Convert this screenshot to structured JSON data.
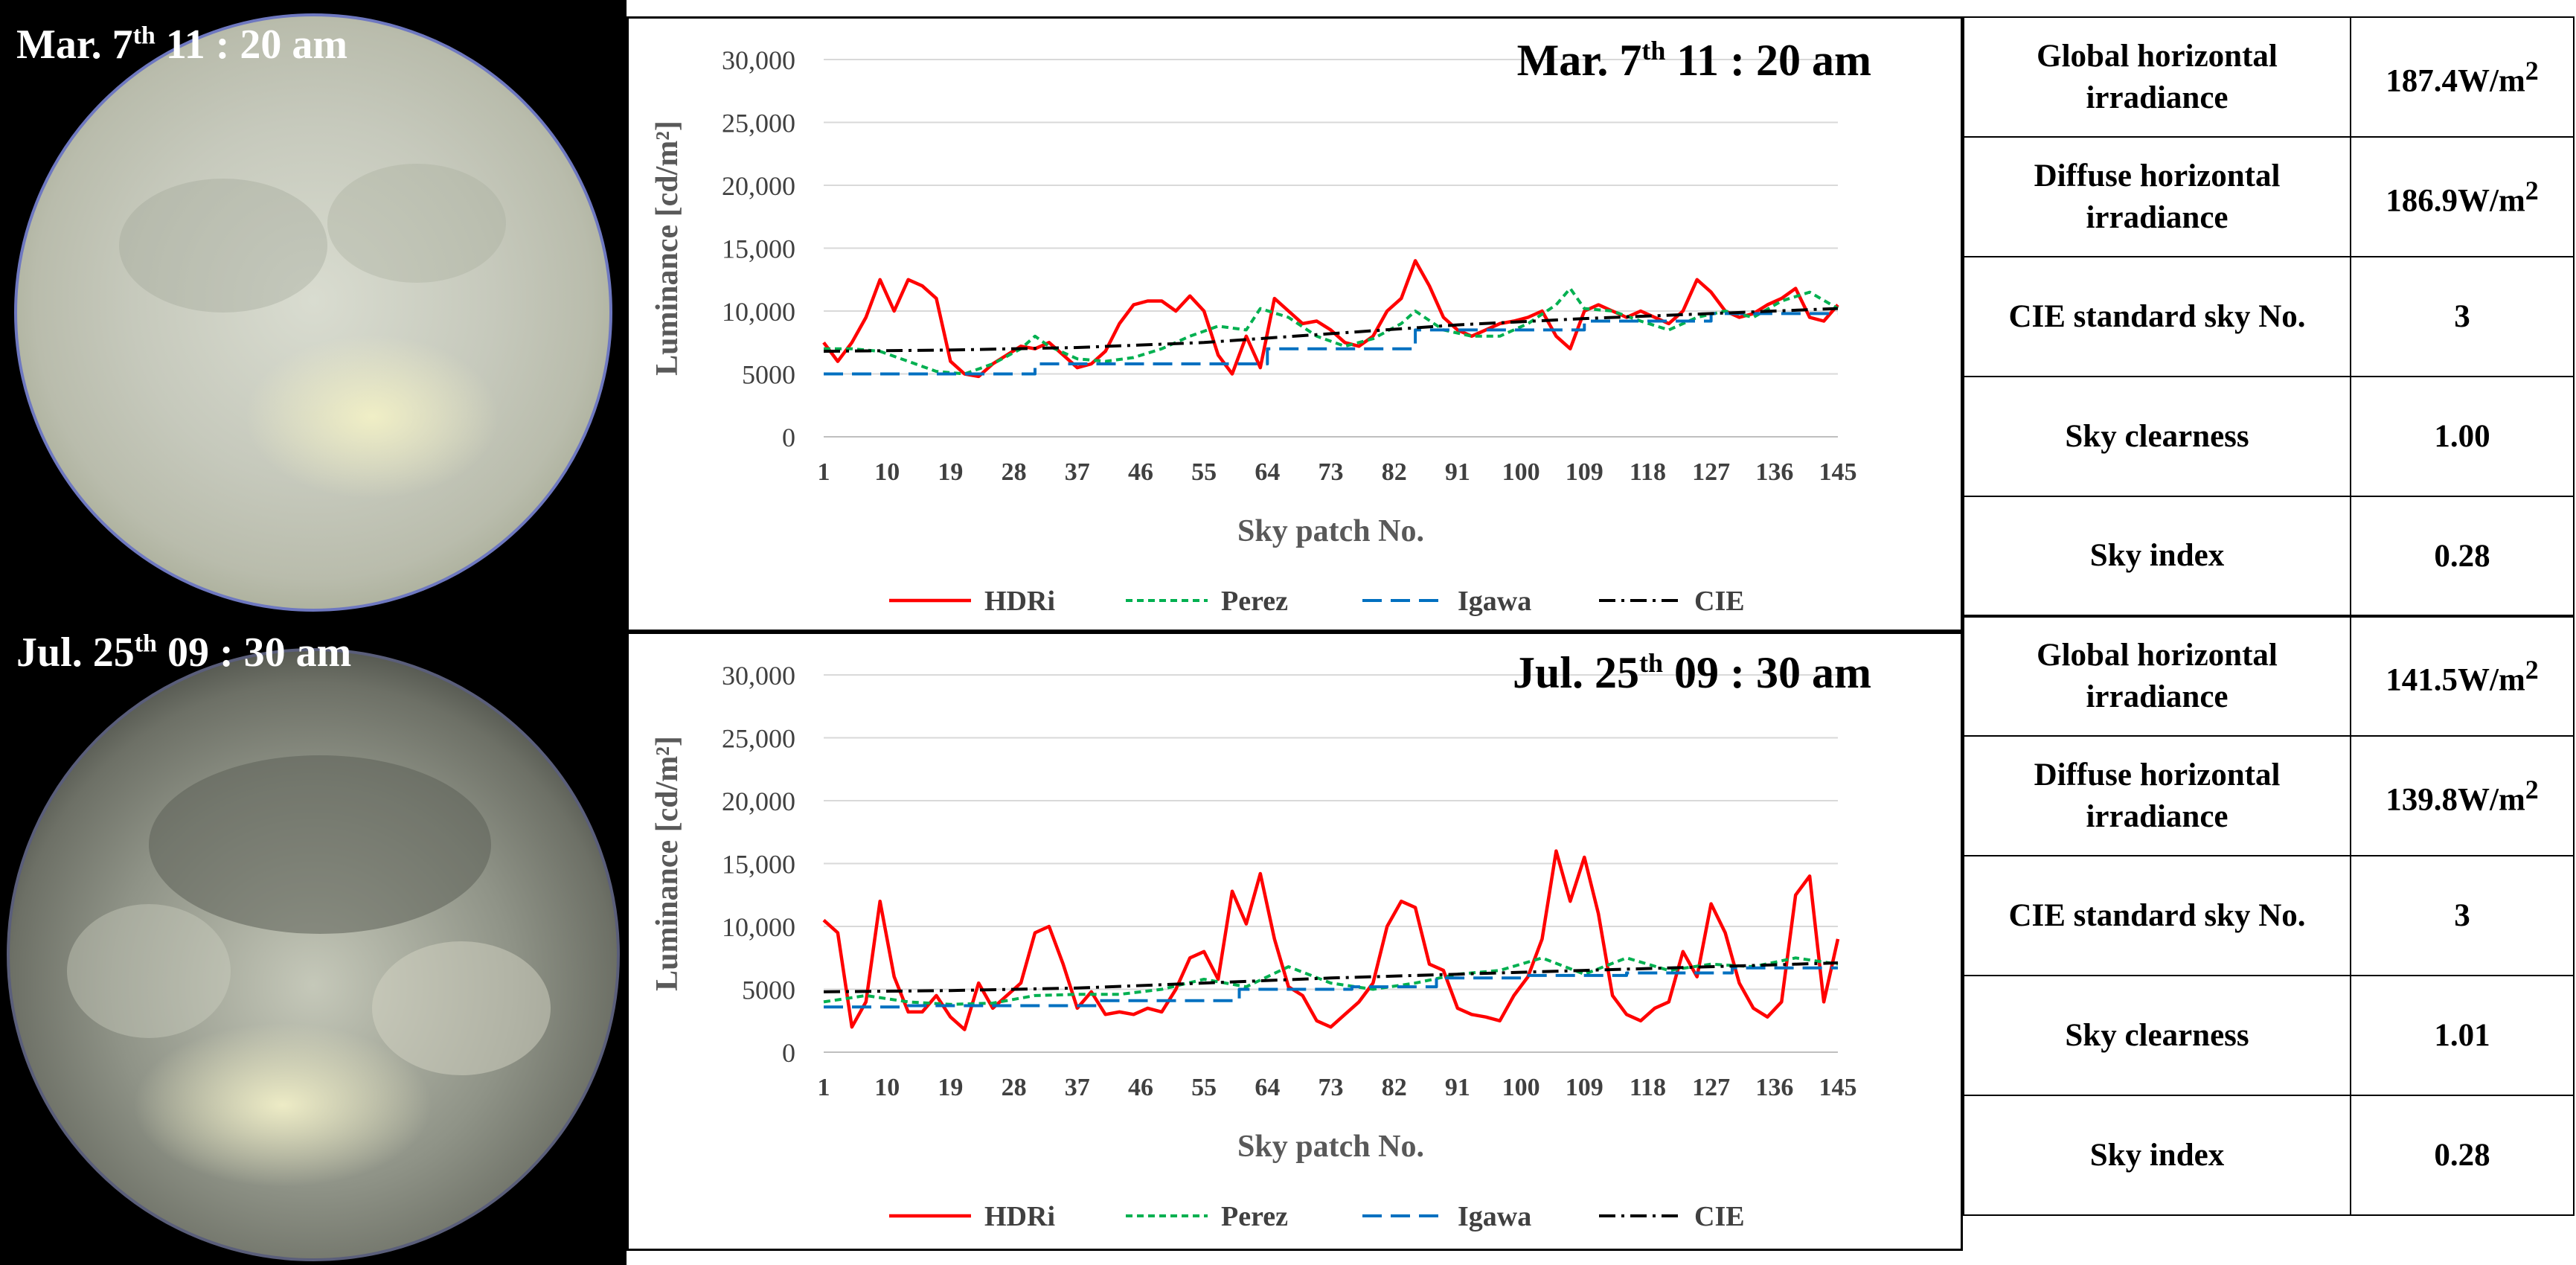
{
  "panels": [
    {
      "photo_label": {
        "month": "Mar. 7",
        "ordinal": "th",
        "time": " 11 : 20 am"
      },
      "chart_title": {
        "month": "Mar. 7",
        "ordinal": "th",
        "time": " 11 : 20 am"
      },
      "table": {
        "rows": [
          {
            "label": "Global horizontal irradiance",
            "value": "187.4W/m",
            "unit_exp": "2"
          },
          {
            "label": "Diffuse horizontal irradiance",
            "value": "186.9W/m",
            "unit_exp": "2"
          },
          {
            "label": "CIE standard sky No.",
            "value": "3",
            "unit_exp": ""
          },
          {
            "label": "Sky clearness",
            "value": "1.00",
            "unit_exp": ""
          },
          {
            "label": "Sky index",
            "value": "0.28",
            "unit_exp": ""
          }
        ]
      }
    },
    {
      "photo_label": {
        "month": "Jul. 25",
        "ordinal": "th",
        "time": " 09 : 30 am"
      },
      "chart_title": {
        "month": "Jul. 25",
        "ordinal": "th",
        "time": " 09 : 30 am"
      },
      "table": {
        "rows": [
          {
            "label": "Global horizontal irradiance",
            "value": "141.5W/m",
            "unit_exp": "2"
          },
          {
            "label": "Diffuse horizontal irradiance",
            "value": "139.8W/m",
            "unit_exp": "2"
          },
          {
            "label": "CIE standard sky No.",
            "value": "3",
            "unit_exp": ""
          },
          {
            "label": "Sky clearness",
            "value": "1.01",
            "unit_exp": ""
          },
          {
            "label": "Sky index",
            "value": "0.28",
            "unit_exp": ""
          }
        ]
      }
    }
  ],
  "chart_data": [
    {
      "type": "line",
      "title": "Mar. 7th 11 : 20 am",
      "xlabel": "Sky patch No.",
      "ylabel": "Luminance [cd/m²]",
      "ylim": [
        0,
        30000
      ],
      "xlim": [
        1,
        145
      ],
      "yticks": [
        "0",
        "5000",
        "10,000",
        "15,000",
        "20,000",
        "25,000",
        "30,000"
      ],
      "xticks": [
        "1",
        "10",
        "19",
        "28",
        "37",
        "46",
        "55",
        "64",
        "73",
        "82",
        "91",
        "100",
        "109",
        "118",
        "127",
        "136",
        "145"
      ],
      "grid": true,
      "legend_position": "bottom",
      "series": [
        {
          "name": "HDRi",
          "color": "#ff0000",
          "style": "solid",
          "x": [
            1,
            3,
            5,
            7,
            9,
            11,
            13,
            15,
            17,
            19,
            21,
            23,
            25,
            27,
            29,
            31,
            33,
            35,
            37,
            39,
            41,
            43,
            45,
            47,
            49,
            51,
            53,
            55,
            57,
            59,
            61,
            63,
            65,
            67,
            69,
            71,
            73,
            75,
            77,
            79,
            81,
            83,
            85,
            87,
            89,
            91,
            93,
            95,
            97,
            99,
            101,
            103,
            105,
            107,
            109,
            111,
            113,
            115,
            117,
            119,
            121,
            123,
            125,
            127,
            129,
            131,
            133,
            135,
            137,
            139,
            141,
            143,
            145
          ],
          "values": [
            7500,
            6000,
            7500,
            9500,
            12500,
            10000,
            12500,
            12000,
            11000,
            6000,
            5000,
            4800,
            5800,
            6500,
            7200,
            7000,
            7500,
            6500,
            5500,
            5800,
            6800,
            9000,
            10500,
            10800,
            10800,
            10000,
            11200,
            10000,
            6500,
            5000,
            8000,
            5500,
            11000,
            10000,
            9000,
            9200,
            8500,
            7500,
            7200,
            8000,
            10000,
            11000,
            14000,
            12000,
            9500,
            8500,
            8000,
            8500,
            9000,
            9200,
            9500,
            10000,
            8000,
            7000,
            10000,
            10500,
            10000,
            9500,
            10000,
            9500,
            9000,
            10000,
            12500,
            11500,
            10000,
            9500,
            9800,
            10500,
            11000,
            11800,
            9500,
            9200,
            10500
          ]
        },
        {
          "name": "Perez",
          "color": "#00b050",
          "style": "dashed",
          "x": [
            1,
            5,
            9,
            13,
            17,
            21,
            25,
            29,
            31,
            33,
            37,
            41,
            45,
            49,
            53,
            57,
            61,
            63,
            67,
            71,
            75,
            79,
            83,
            85,
            89,
            93,
            97,
            101,
            105,
            107,
            109,
            113,
            117,
            121,
            125,
            129,
            133,
            137,
            141,
            145
          ],
          "values": [
            7000,
            7000,
            6800,
            6000,
            5200,
            5000,
            5800,
            7000,
            8000,
            7200,
            6200,
            6000,
            6300,
            7000,
            8000,
            8800,
            8500,
            10200,
            9500,
            8000,
            7200,
            7800,
            9000,
            10000,
            8500,
            8000,
            8000,
            9000,
            10500,
            11800,
            10200,
            10000,
            9200,
            8500,
            9500,
            10000,
            9500,
            10800,
            11500,
            10200
          ]
        },
        {
          "name": "Igawa",
          "color": "#0070c0",
          "style": "longdash",
          "x": [
            1,
            4,
            4,
            19,
            19,
            31,
            31,
            64,
            64,
            85,
            85,
            109,
            109,
            127,
            127,
            145
          ],
          "values": [
            5000,
            5000,
            5000,
            5000,
            5000,
            5000,
            5800,
            5800,
            7000,
            7000,
            8500,
            8500,
            9200,
            9200,
            9800,
            9800
          ]
        },
        {
          "name": "CIE",
          "color": "#000000",
          "style": "dashdot",
          "x": [
            1,
            19,
            37,
            55,
            73,
            91,
            109,
            127,
            145
          ],
          "values": [
            6800,
            6900,
            7100,
            7500,
            8200,
            8900,
            9400,
            9800,
            10200
          ]
        }
      ]
    },
    {
      "type": "line",
      "title": "Jul. 25th 09 : 30 am",
      "xlabel": "Sky patch No.",
      "ylabel": "Luminance [cd/m²]",
      "ylim": [
        0,
        30000
      ],
      "xlim": [
        1,
        145
      ],
      "yticks": [
        "0",
        "5000",
        "10,000",
        "15,000",
        "20,000",
        "25,000",
        "30,000"
      ],
      "xticks": [
        "1",
        "10",
        "19",
        "28",
        "37",
        "46",
        "55",
        "64",
        "73",
        "82",
        "91",
        "100",
        "109",
        "118",
        "127",
        "136",
        "145"
      ],
      "grid": true,
      "legend_position": "bottom",
      "series": [
        {
          "name": "HDRi",
          "color": "#ff0000",
          "style": "solid",
          "x": [
            1,
            3,
            5,
            7,
            9,
            11,
            13,
            15,
            17,
            19,
            21,
            23,
            25,
            27,
            29,
            31,
            33,
            35,
            37,
            39,
            41,
            43,
            45,
            47,
            49,
            51,
            53,
            55,
            57,
            59,
            61,
            63,
            65,
            67,
            69,
            71,
            73,
            75,
            77,
            79,
            81,
            83,
            85,
            87,
            89,
            91,
            93,
            95,
            97,
            99,
            101,
            103,
            105,
            107,
            109,
            111,
            113,
            115,
            117,
            119,
            121,
            123,
            125,
            127,
            129,
            131,
            133,
            135,
            137,
            139,
            141,
            143,
            145
          ],
          "values": [
            10500,
            9500,
            2000,
            4000,
            12000,
            6000,
            3200,
            3200,
            4500,
            2800,
            1800,
            5500,
            3500,
            4500,
            5500,
            9500,
            10000,
            7000,
            3500,
            4800,
            3000,
            3200,
            3000,
            3500,
            3200,
            5000,
            7500,
            8000,
            5800,
            12800,
            10200,
            14200,
            9000,
            5200,
            4500,
            2500,
            2000,
            3000,
            4000,
            5500,
            10000,
            12000,
            11500,
            7000,
            6500,
            3500,
            3000,
            2800,
            2500,
            4500,
            6000,
            9000,
            16000,
            12000,
            15500,
            11000,
            4500,
            3000,
            2500,
            3500,
            4000,
            8000,
            6000,
            11800,
            9500,
            5500,
            3500,
            2800,
            4000,
            12500,
            14000,
            4000,
            9000
          ]
        },
        {
          "name": "Perez",
          "color": "#00b050",
          "style": "dashed",
          "x": [
            1,
            7,
            13,
            19,
            25,
            31,
            37,
            43,
            49,
            55,
            61,
            67,
            73,
            79,
            85,
            91,
            97,
            103,
            109,
            115,
            121,
            127,
            133,
            139,
            145
          ],
          "values": [
            4000,
            4500,
            4000,
            3800,
            3900,
            4500,
            4600,
            4600,
            5000,
            5800,
            5200,
            6800,
            5500,
            5000,
            5500,
            6200,
            6500,
            7500,
            6200,
            7500,
            6500,
            7000,
            6800,
            7500,
            7000
          ]
        },
        {
          "name": "Igawa",
          "color": "#0070c0",
          "style": "longdash",
          "x": [
            1,
            13,
            13,
            40,
            40,
            60,
            60,
            76,
            76,
            88,
            88,
            100,
            100,
            115,
            115,
            130,
            130,
            145
          ],
          "values": [
            3600,
            3600,
            3700,
            3700,
            4100,
            4100,
            5000,
            5000,
            5200,
            5200,
            5900,
            5900,
            6100,
            6100,
            6300,
            6300,
            6700,
            6700
          ]
        },
        {
          "name": "CIE",
          "color": "#000000",
          "style": "dashdot",
          "x": [
            1,
            19,
            37,
            55,
            73,
            91,
            109,
            127,
            145
          ],
          "values": [
            4800,
            4900,
            5100,
            5500,
            5900,
            6200,
            6500,
            6800,
            7100
          ]
        }
      ]
    }
  ]
}
